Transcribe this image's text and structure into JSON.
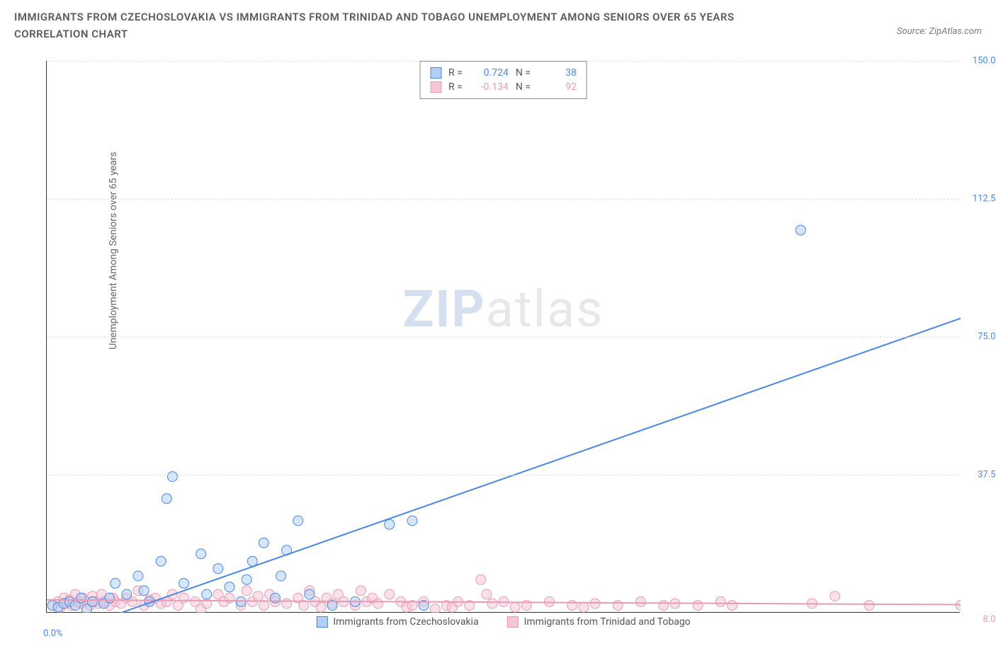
{
  "title": "IMMIGRANTS FROM CZECHOSLOVAKIA VS IMMIGRANTS FROM TRINIDAD AND TOBAGO UNEMPLOYMENT AMONG SENIORS OVER 65 YEARS CORRELATION CHART",
  "source_label": "Source: ZipAtlas.com",
  "ylabel": "Unemployment Among Seniors over 65 years",
  "watermark_a": "ZIP",
  "watermark_b": "atlas",
  "chart": {
    "type": "scatter-correlation",
    "background_color": "#ffffff",
    "grid_color": "#e0e0e0",
    "axis_color": "#333333",
    "font_color": "#666666",
    "xlim": [
      0.0,
      8.0
    ],
    "ylim": [
      0.0,
      150.0
    ],
    "xtick_origin": "0.0%",
    "xtick_last": "8.0%",
    "yticks": [
      {
        "v": 37.5,
        "label": "37.5%"
      },
      {
        "v": 75.0,
        "label": "75.0%"
      },
      {
        "v": 112.5,
        "label": "112.5%"
      },
      {
        "v": 150.0,
        "label": "150.0%"
      }
    ],
    "marker_radius": 7,
    "marker_stroke_width": 1,
    "line_width": 2,
    "series": [
      {
        "id": "czech",
        "label": "Immigrants from Czechoslovakia",
        "color_fill": "#b3cff5",
        "color_stroke": "#4a86e8",
        "fill_opacity": 0.55,
        "R_label": "R =",
        "R": "0.724",
        "N_label": "N =",
        "N": "38",
        "trend": {
          "x1": 0.1,
          "y1": -6,
          "x2": 8.0,
          "y2": 80
        },
        "points": [
          [
            0.05,
            2
          ],
          [
            0.1,
            1.5
          ],
          [
            0.15,
            2.5
          ],
          [
            0.2,
            3
          ],
          [
            0.25,
            2
          ],
          [
            0.3,
            4
          ],
          [
            0.35,
            1
          ],
          [
            0.4,
            3
          ],
          [
            0.5,
            2.5
          ],
          [
            0.55,
            4
          ],
          [
            0.6,
            8
          ],
          [
            0.7,
            5
          ],
          [
            0.8,
            10
          ],
          [
            0.85,
            6
          ],
          [
            0.9,
            3
          ],
          [
            1.0,
            14
          ],
          [
            1.05,
            31
          ],
          [
            1.1,
            37
          ],
          [
            1.2,
            8
          ],
          [
            1.35,
            16
          ],
          [
            1.4,
            5
          ],
          [
            1.5,
            12
          ],
          [
            1.6,
            7
          ],
          [
            1.7,
            3
          ],
          [
            1.75,
            9
          ],
          [
            1.8,
            14
          ],
          [
            1.9,
            19
          ],
          [
            2.0,
            4
          ],
          [
            2.05,
            10
          ],
          [
            2.1,
            17
          ],
          [
            2.2,
            25
          ],
          [
            2.3,
            5
          ],
          [
            2.5,
            2
          ],
          [
            2.7,
            3
          ],
          [
            3.0,
            24
          ],
          [
            3.2,
            25
          ],
          [
            3.3,
            2
          ],
          [
            6.6,
            104
          ]
        ]
      },
      {
        "id": "trinidad",
        "label": "Immigrants from Trinidad and Tobago",
        "color_fill": "#f5c6d6",
        "color_stroke": "#e89bb5",
        "fill_opacity": 0.55,
        "R_label": "R =",
        "R": "-0.134",
        "N_label": "N =",
        "N": "92",
        "trend": {
          "x1": 0.0,
          "y1": 3.5,
          "x2": 8.0,
          "y2": 2.2
        },
        "points": [
          [
            0.05,
            2
          ],
          [
            0.1,
            3
          ],
          [
            0.12,
            1.5
          ],
          [
            0.15,
            4
          ],
          [
            0.18,
            2.5
          ],
          [
            0.2,
            3.5
          ],
          [
            0.22,
            2
          ],
          [
            0.25,
            5
          ],
          [
            0.28,
            3
          ],
          [
            0.3,
            2.5
          ],
          [
            0.32,
            4
          ],
          [
            0.35,
            3
          ],
          [
            0.38,
            2
          ],
          [
            0.4,
            4.5
          ],
          [
            0.42,
            3
          ],
          [
            0.45,
            2.5
          ],
          [
            0.48,
            5
          ],
          [
            0.5,
            3
          ],
          [
            0.55,
            2
          ],
          [
            0.58,
            4
          ],
          [
            0.6,
            3
          ],
          [
            0.65,
            2.5
          ],
          [
            0.7,
            4
          ],
          [
            0.75,
            3
          ],
          [
            0.8,
            6
          ],
          [
            0.85,
            2
          ],
          [
            0.9,
            3.5
          ],
          [
            0.95,
            4
          ],
          [
            1.0,
            2.5
          ],
          [
            1.05,
            3
          ],
          [
            1.1,
            5
          ],
          [
            1.15,
            2
          ],
          [
            1.2,
            4
          ],
          [
            1.3,
            3
          ],
          [
            1.35,
            1
          ],
          [
            1.4,
            2.5
          ],
          [
            1.5,
            5
          ],
          [
            1.55,
            3
          ],
          [
            1.6,
            4
          ],
          [
            1.7,
            2
          ],
          [
            1.75,
            6
          ],
          [
            1.8,
            3
          ],
          [
            1.85,
            4.5
          ],
          [
            1.9,
            2
          ],
          [
            1.95,
            5
          ],
          [
            2.0,
            3
          ],
          [
            2.1,
            2.5
          ],
          [
            2.2,
            4
          ],
          [
            2.25,
            2
          ],
          [
            2.3,
            6
          ],
          [
            2.35,
            3
          ],
          [
            2.4,
            1.5
          ],
          [
            2.45,
            4
          ],
          [
            2.5,
            2.5
          ],
          [
            2.55,
            5
          ],
          [
            2.6,
            3
          ],
          [
            2.7,
            2
          ],
          [
            2.75,
            6
          ],
          [
            2.8,
            3
          ],
          [
            2.85,
            4
          ],
          [
            2.9,
            2.5
          ],
          [
            3.0,
            5
          ],
          [
            3.1,
            3
          ],
          [
            3.15,
            1.5
          ],
          [
            3.2,
            2
          ],
          [
            3.3,
            3
          ],
          [
            3.4,
            1
          ],
          [
            3.5,
            2
          ],
          [
            3.55,
            1.5
          ],
          [
            3.6,
            3
          ],
          [
            3.7,
            2
          ],
          [
            3.8,
            9
          ],
          [
            3.85,
            5
          ],
          [
            3.9,
            2.5
          ],
          [
            4.0,
            3
          ],
          [
            4.1,
            1.5
          ],
          [
            4.2,
            2
          ],
          [
            4.4,
            3
          ],
          [
            4.6,
            2
          ],
          [
            4.7,
            1.5
          ],
          [
            4.8,
            2.5
          ],
          [
            5.0,
            2
          ],
          [
            5.2,
            3
          ],
          [
            5.4,
            2
          ],
          [
            5.5,
            2.5
          ],
          [
            5.7,
            2
          ],
          [
            5.9,
            3
          ],
          [
            6.0,
            2
          ],
          [
            6.7,
            2.5
          ],
          [
            6.9,
            4.5
          ],
          [
            7.2,
            2
          ],
          [
            8.0,
            2
          ]
        ]
      }
    ],
    "legend_items": [
      {
        "id": "czech",
        "label": "Immigrants from Czechoslovakia"
      },
      {
        "id": "trinidad",
        "label": "Immigrants from Trinidad and Tobago"
      }
    ]
  }
}
